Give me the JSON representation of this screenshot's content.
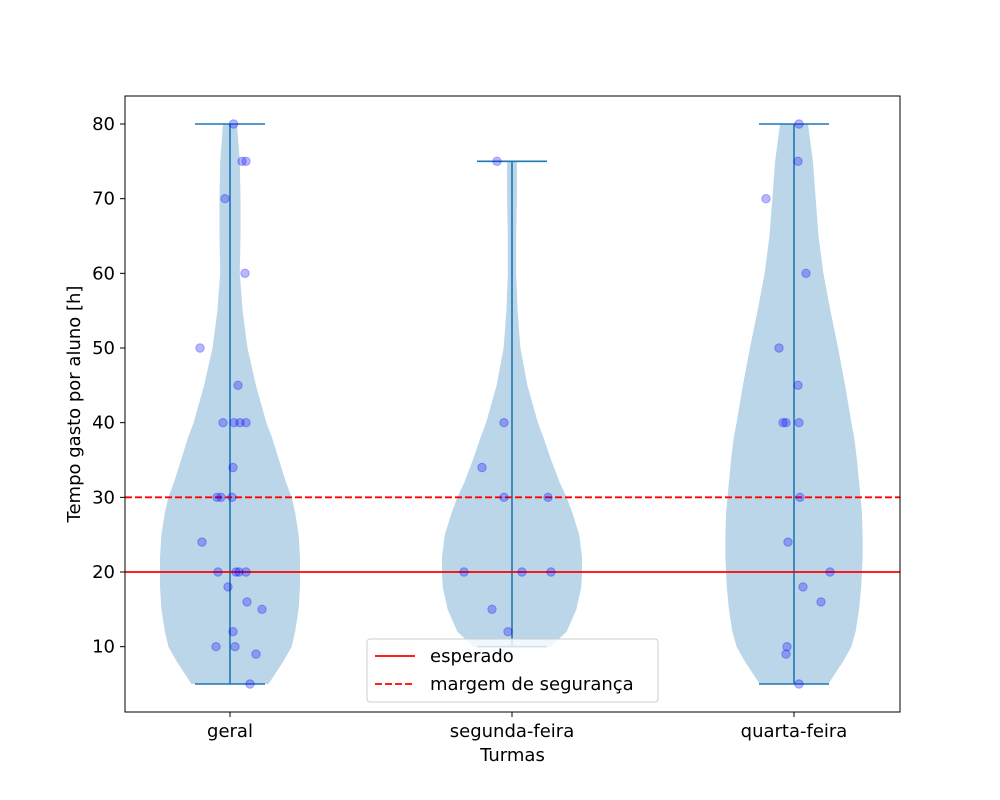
{
  "chart_data": {
    "type": "violin",
    "xlabel": "Turmas",
    "ylabel": "Tempo gasto por aluno [h]",
    "categories": [
      "geral",
      "segunda-feira",
      "quarta-feira"
    ],
    "ylim": [
      1.25,
      83.75
    ],
    "yticks": [
      10,
      20,
      30,
      40,
      50,
      60,
      70,
      80
    ],
    "grid": false,
    "colors": {
      "violin_fill": "#1f77b4",
      "violin_edge": "#1f77b4",
      "points": "#0000ff",
      "expected_line": "#ff0000",
      "margin_line": "#ff0000"
    },
    "reference_lines": [
      {
        "name": "esperado",
        "y": 20,
        "style": "solid"
      },
      {
        "name": "margem de segurança",
        "y": 30,
        "style": "dashed"
      }
    ],
    "legend": {
      "placement": "lower-center",
      "entries": [
        "esperado",
        "margem de segurança"
      ]
    },
    "violins": [
      {
        "category": "geral",
        "min": 5,
        "max": 80,
        "density": [
          [
            5,
            0.55
          ],
          [
            8,
            0.76
          ],
          [
            10,
            0.88
          ],
          [
            12,
            0.93
          ],
          [
            15,
            0.98
          ],
          [
            18,
            1.0
          ],
          [
            20,
            1.0
          ],
          [
            22,
            1.0
          ],
          [
            25,
            0.98
          ],
          [
            28,
            0.93
          ],
          [
            30,
            0.88
          ],
          [
            32,
            0.8
          ],
          [
            35,
            0.7
          ],
          [
            38,
            0.6
          ],
          [
            40,
            0.52
          ],
          [
            45,
            0.37
          ],
          [
            50,
            0.25
          ],
          [
            55,
            0.18
          ],
          [
            60,
            0.14
          ],
          [
            65,
            0.15
          ],
          [
            70,
            0.15
          ],
          [
            75,
            0.14
          ],
          [
            80,
            0.1
          ]
        ],
        "points": [
          [
            0.035,
            80
          ],
          [
            0.12,
            75
          ],
          [
            0.16,
            75
          ],
          [
            -0.05,
            70
          ],
          [
            0.15,
            60
          ],
          [
            -0.3,
            50
          ],
          [
            0.08,
            45
          ],
          [
            -0.07,
            40
          ],
          [
            0.04,
            40
          ],
          [
            0.1,
            40
          ],
          [
            0.16,
            40
          ],
          [
            0.03,
            34
          ],
          [
            -0.13,
            30
          ],
          [
            -0.09,
            30
          ],
          [
            0.02,
            30
          ],
          [
            -0.28,
            24
          ],
          [
            -0.12,
            20
          ],
          [
            0.06,
            20
          ],
          [
            0.09,
            20
          ],
          [
            0.16,
            20
          ],
          [
            -0.02,
            18
          ],
          [
            0.17,
            16
          ],
          [
            0.32,
            15
          ],
          [
            0.03,
            12
          ],
          [
            -0.14,
            10
          ],
          [
            0.05,
            10
          ],
          [
            0.26,
            9
          ],
          [
            0.2,
            5
          ]
        ]
      },
      {
        "category": "segunda-feira",
        "min": 10,
        "max": 75,
        "density": [
          [
            10,
            0.55
          ],
          [
            12,
            0.78
          ],
          [
            15,
            0.92
          ],
          [
            18,
            0.99
          ],
          [
            20,
            1.0
          ],
          [
            22,
            1.0
          ],
          [
            25,
            0.96
          ],
          [
            28,
            0.86
          ],
          [
            30,
            0.78
          ],
          [
            32,
            0.68
          ],
          [
            35,
            0.56
          ],
          [
            38,
            0.45
          ],
          [
            40,
            0.37
          ],
          [
            45,
            0.22
          ],
          [
            50,
            0.12
          ],
          [
            55,
            0.08
          ],
          [
            60,
            0.06
          ],
          [
            65,
            0.06
          ],
          [
            70,
            0.07
          ],
          [
            75,
            0.07
          ]
        ],
        "points": [
          [
            -0.15,
            75
          ],
          [
            -0.08,
            40
          ],
          [
            -0.3,
            34
          ],
          [
            -0.08,
            30
          ],
          [
            0.36,
            30
          ],
          [
            -0.48,
            20
          ],
          [
            0.1,
            20
          ],
          [
            0.39,
            20
          ],
          [
            -0.2,
            15
          ],
          [
            -0.04,
            12
          ]
        ]
      },
      {
        "category": "quarta-feira",
        "min": 5,
        "max": 80,
        "density": [
          [
            5,
            0.49
          ],
          [
            8,
            0.7
          ],
          [
            10,
            0.82
          ],
          [
            12,
            0.88
          ],
          [
            15,
            0.93
          ],
          [
            18,
            0.96
          ],
          [
            20,
            0.97
          ],
          [
            22,
            0.98
          ],
          [
            25,
            0.98
          ],
          [
            28,
            0.97
          ],
          [
            30,
            0.95
          ],
          [
            32,
            0.93
          ],
          [
            35,
            0.9
          ],
          [
            38,
            0.86
          ],
          [
            40,
            0.82
          ],
          [
            45,
            0.73
          ],
          [
            50,
            0.63
          ],
          [
            55,
            0.52
          ],
          [
            60,
            0.42
          ],
          [
            65,
            0.35
          ],
          [
            70,
            0.31
          ],
          [
            75,
            0.27
          ],
          [
            80,
            0.2
          ]
        ],
        "points": [
          [
            0.05,
            80
          ],
          [
            0.04,
            75
          ],
          [
            -0.28,
            70
          ],
          [
            0.12,
            60
          ],
          [
            -0.15,
            50
          ],
          [
            0.04,
            45
          ],
          [
            -0.11,
            40
          ],
          [
            -0.08,
            40
          ],
          [
            0.05,
            40
          ],
          [
            0.06,
            30
          ],
          [
            -0.06,
            24
          ],
          [
            0.36,
            20
          ],
          [
            0.09,
            18
          ],
          [
            0.27,
            16
          ],
          [
            -0.07,
            10
          ],
          [
            -0.08,
            9
          ],
          [
            0.05,
            5
          ]
        ]
      }
    ]
  }
}
